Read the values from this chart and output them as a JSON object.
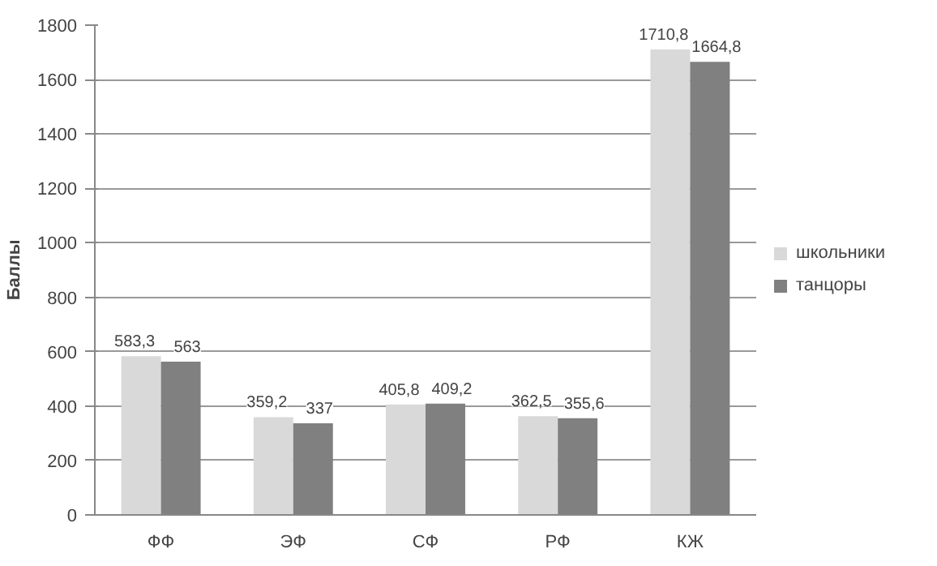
{
  "chart_data": {
    "type": "bar",
    "ylabel": "Баллы",
    "categories": [
      "ФФ",
      "ЭФ",
      "СФ",
      "РФ",
      "КЖ"
    ],
    "series": [
      {
        "name": "школьники",
        "color": "#d9d9d9",
        "values": [
          583.3,
          359.2,
          405.8,
          362.5,
          1710.8
        ],
        "value_labels": [
          "583,3",
          "359,2",
          "405,8",
          "362,5",
          "1710,8"
        ]
      },
      {
        "name": "танцоры",
        "color": "#808080",
        "values": [
          563,
          337,
          409.2,
          355.6,
          1664.8
        ],
        "value_labels": [
          "563",
          "337",
          "409,2",
          "355,6",
          "1664,8"
        ]
      }
    ],
    "ylim": [
      0,
      1800
    ],
    "yticks": [
      0,
      200,
      400,
      600,
      800,
      1000,
      1200,
      1400,
      1600,
      1800
    ],
    "grid": "y",
    "legend": "right"
  }
}
